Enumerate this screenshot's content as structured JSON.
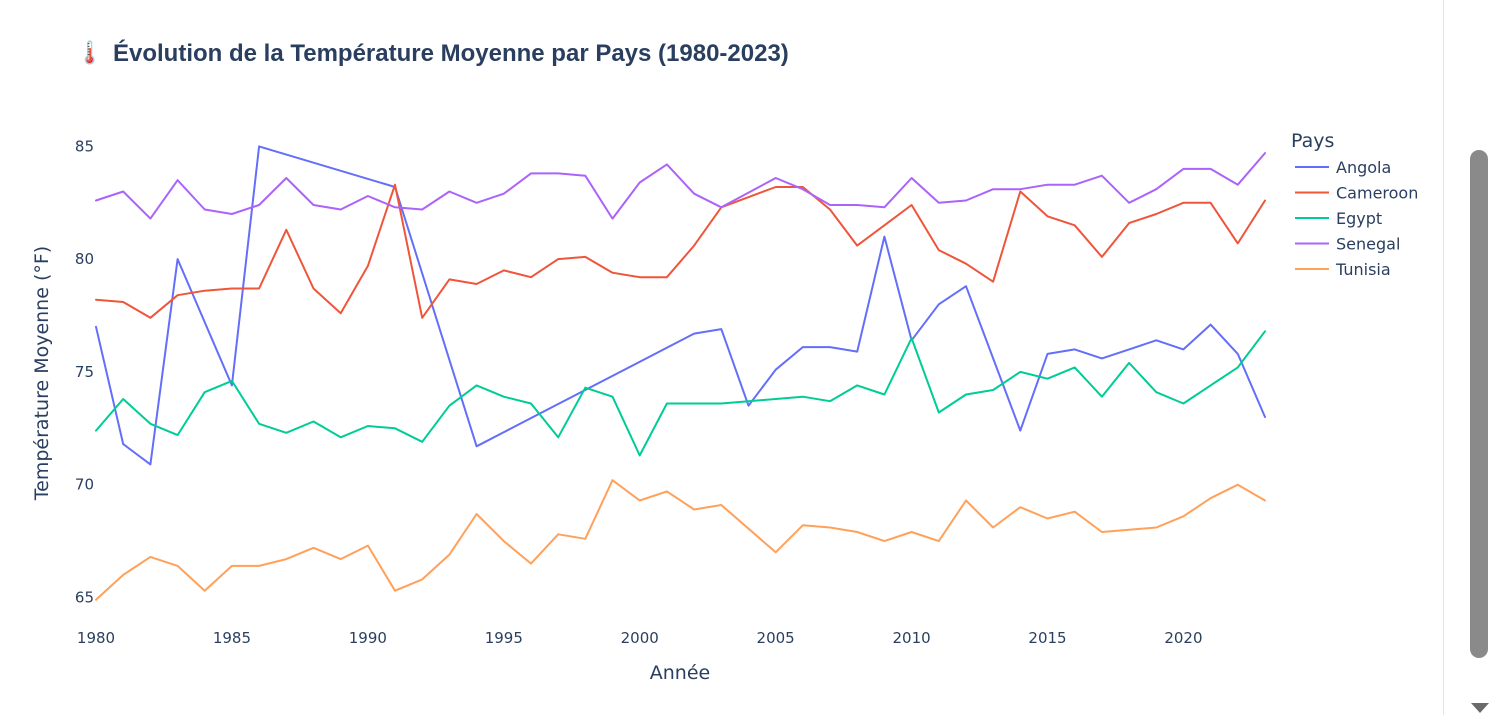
{
  "chart_data": {
    "type": "line",
    "title_icon": "🌡️",
    "title": "Évolution de la Température Moyenne par Pays (1980-2023)",
    "xlabel": "Année",
    "ylabel": "Température Moyenne (°F)",
    "xlim": [
      1980,
      2023
    ],
    "ylim": [
      64,
      87.5
    ],
    "xticks": [
      1980,
      1985,
      1990,
      1995,
      2000,
      2005,
      2010,
      2015,
      2020
    ],
    "yticks": [
      65,
      70,
      75,
      80,
      85
    ],
    "grid": false,
    "legend_title": "Pays",
    "legend_position": "top-right",
    "series": [
      {
        "name": "Angola",
        "color": "#636efa",
        "x": [
          1980,
          1981,
          1982,
          1983,
          1985,
          1986,
          1991,
          1994,
          2002,
          2003,
          2004,
          2005,
          2006,
          2007,
          2008,
          2009,
          2010,
          2011,
          2012,
          2014,
          2015,
          2016,
          2017,
          2018,
          2019,
          2020,
          2021,
          2022,
          2023
        ],
        "y": [
          77.0,
          71.8,
          70.9,
          80.0,
          74.4,
          85.0,
          83.2,
          71.7,
          76.7,
          76.9,
          73.5,
          75.1,
          76.1,
          76.1,
          75.9,
          81.0,
          76.4,
          78.0,
          78.8,
          72.4,
          75.8,
          76.0,
          75.6,
          76.0,
          76.4,
          76.0,
          77.1,
          75.8,
          73.0
        ]
      },
      {
        "name": "Cameroon",
        "color": "#ef553b",
        "x": [
          1980,
          1981,
          1982,
          1983,
          1984,
          1985,
          1986,
          1987,
          1988,
          1989,
          1990,
          1991,
          1992,
          1993,
          1994,
          1995,
          1996,
          1997,
          1998,
          1999,
          2000,
          2001,
          2002,
          2003,
          2005,
          2006,
          2007,
          2008,
          2010,
          2011,
          2012,
          2013,
          2014,
          2015,
          2016,
          2017,
          2018,
          2019,
          2020,
          2021,
          2022,
          2023
        ],
        "y": [
          78.2,
          78.1,
          77.4,
          78.4,
          78.6,
          78.7,
          78.7,
          81.3,
          78.7,
          77.6,
          79.7,
          83.3,
          77.4,
          79.1,
          78.9,
          79.5,
          79.2,
          80.0,
          80.1,
          79.4,
          79.2,
          79.2,
          80.6,
          82.3,
          83.2,
          83.2,
          82.2,
          80.6,
          82.4,
          80.4,
          79.8,
          79.0,
          83.0,
          81.9,
          81.5,
          80.1,
          81.6,
          82.0,
          82.5,
          82.5,
          80.7,
          82.6
        ]
      },
      {
        "name": "Egypt",
        "color": "#00cc96",
        "x": [
          1980,
          1981,
          1982,
          1983,
          1984,
          1985,
          1986,
          1987,
          1988,
          1989,
          1990,
          1991,
          1992,
          1993,
          1994,
          1995,
          1996,
          1997,
          1998,
          1999,
          2000,
          2001,
          2003,
          2004,
          2006,
          2007,
          2008,
          2009,
          2010,
          2011,
          2012,
          2013,
          2014,
          2015,
          2016,
          2017,
          2018,
          2019,
          2020,
          2021,
          2022,
          2023
        ],
        "y": [
          72.4,
          73.8,
          72.7,
          72.2,
          74.1,
          74.6,
          72.7,
          72.3,
          72.8,
          72.1,
          72.6,
          72.5,
          71.9,
          73.5,
          74.4,
          73.9,
          73.6,
          72.1,
          74.3,
          73.9,
          71.3,
          73.6,
          73.6,
          73.7,
          73.9,
          73.7,
          74.4,
          74.0,
          76.5,
          73.2,
          74.0,
          74.2,
          75.0,
          74.7,
          75.2,
          73.9,
          75.4,
          74.1,
          73.6,
          74.4,
          75.2,
          76.8
        ]
      },
      {
        "name": "Senegal",
        "color": "#ab63fa",
        "x": [
          1980,
          1981,
          1982,
          1983,
          1984,
          1985,
          1986,
          1987,
          1988,
          1989,
          1990,
          1991,
          1992,
          1993,
          1994,
          1995,
          1996,
          1997,
          1998,
          1999,
          2000,
          2001,
          2002,
          2003,
          2005,
          2006,
          2007,
          2008,
          2009,
          2010,
          2011,
          2012,
          2013,
          2014,
          2015,
          2016,
          2017,
          2018,
          2019,
          2020,
          2021,
          2022,
          2023
        ],
        "y": [
          82.6,
          83.0,
          81.8,
          83.5,
          82.2,
          82.0,
          82.4,
          83.6,
          82.4,
          82.2,
          82.8,
          82.3,
          82.2,
          83.0,
          82.5,
          82.9,
          83.8,
          83.8,
          83.7,
          81.8,
          83.4,
          84.2,
          82.9,
          82.3,
          83.6,
          83.1,
          82.4,
          82.4,
          82.3,
          83.6,
          82.5,
          82.6,
          83.1,
          83.1,
          83.3,
          83.3,
          83.7,
          82.5,
          83.1,
          84.0,
          84.0,
          83.3,
          84.7
        ]
      },
      {
        "name": "Tunisia",
        "color": "#ffa15a",
        "x": [
          1980,
          1981,
          1982,
          1983,
          1984,
          1985,
          1986,
          1987,
          1988,
          1989,
          1990,
          1991,
          1992,
          1993,
          1994,
          1995,
          1996,
          1997,
          1998,
          1999,
          2000,
          2001,
          2002,
          2003,
          2005,
          2006,
          2007,
          2008,
          2009,
          2010,
          2011,
          2012,
          2013,
          2014,
          2015,
          2016,
          2017,
          2018,
          2019,
          2020,
          2021,
          2022,
          2023
        ],
        "y": [
          64.9,
          66.0,
          66.8,
          66.4,
          65.3,
          66.4,
          66.4,
          66.7,
          67.2,
          66.7,
          67.3,
          65.3,
          65.8,
          66.9,
          68.7,
          67.5,
          66.5,
          67.8,
          67.6,
          70.2,
          69.3,
          69.7,
          68.9,
          69.1,
          67.0,
          68.2,
          68.1,
          67.9,
          67.5,
          67.9,
          67.5,
          69.3,
          68.1,
          69.0,
          68.5,
          68.8,
          67.9,
          68.0,
          68.1,
          68.6,
          69.4,
          70.0,
          69.3
        ]
      }
    ]
  }
}
